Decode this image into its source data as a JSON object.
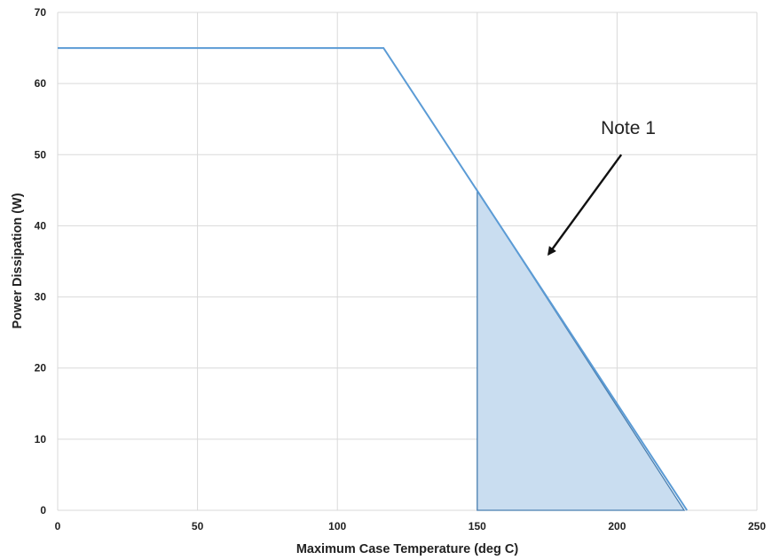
{
  "chart_data": {
    "type": "line",
    "title": "",
    "xlabel": "Maximum Case Temperature (deg C)",
    "ylabel": "Power Dissipation (W)",
    "xlim": [
      0,
      250
    ],
    "ylim": [
      0,
      70
    ],
    "x_ticks": [
      0,
      50,
      100,
      150,
      200,
      250
    ],
    "y_ticks": [
      0,
      10,
      20,
      30,
      40,
      50,
      60,
      70
    ],
    "grid": true,
    "series": [
      {
        "x": [
          0,
          116.5,
          225
        ],
        "y": [
          65,
          65,
          0
        ],
        "color": "#5b9bd5"
      }
    ],
    "shaded_region": {
      "x": [
        150,
        150,
        224,
        150
      ],
      "y": [
        0,
        45,
        0,
        0
      ],
      "fill": "#c9ddf0",
      "stroke": "#4a7fb0"
    },
    "annotations": [
      {
        "text": "Note 1",
        "arrow_from": [
          201.5,
          50
        ],
        "arrow_to": [
          175.5,
          36
        ]
      }
    ]
  }
}
